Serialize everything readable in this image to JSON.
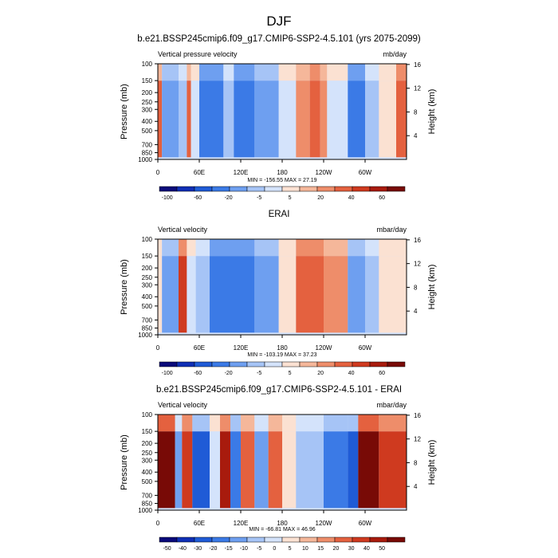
{
  "figure": {
    "main_title": "DJF"
  },
  "colors": {
    "diverging": [
      "#0a0a7a",
      "#0f2fb5",
      "#1f5bd6",
      "#3b7ae6",
      "#6e9ff0",
      "#a6c4f6",
      "#d4e3fb",
      "#fbe1d2",
      "#f5b79a",
      "#ee8d6a",
      "#e4613f",
      "#cf3a1f",
      "#a81b0d",
      "#780a06"
    ]
  },
  "chart_data": [
    {
      "type": "heatmap",
      "title": "b.e21.BSSP245cmip6.f09_g17.CMIP6-SSP2-4.5.101 (yrs 2075-2099)",
      "left_label": "Vertical pressure velocity",
      "right_label": "mb/day",
      "ylabel": "Pressure (mb)",
      "ylabel_right": "Height (km)",
      "yticks": [
        "100",
        "150",
        "200",
        "250",
        "300",
        "400",
        "500",
        "700",
        "850",
        "1000"
      ],
      "ytick_values": [
        100,
        150,
        200,
        250,
        300,
        400,
        500,
        700,
        850,
        1000
      ],
      "yticks_right": [
        "16",
        "12",
        "8",
        "4"
      ],
      "yticks_right_values": [
        16,
        12,
        8,
        4
      ],
      "xticks": [
        "0",
        "60E",
        "120E",
        "180",
        "120W",
        "60W"
      ],
      "xtick_values": [
        0,
        60,
        120,
        180,
        240,
        300
      ],
      "xlim": [
        0,
        360
      ],
      "ylim": [
        1000,
        100
      ],
      "y_scale": "log",
      "stats": "MIN = -156.55  MAX =  27.19",
      "colorbar_labels": [
        "-100",
        "-60",
        "-20",
        "-5",
        "5",
        "20",
        "40",
        "60"
      ],
      "colorbar_levels": [
        -120,
        -100,
        -80,
        -60,
        -40,
        -20,
        -10,
        -5,
        0,
        5,
        10,
        20,
        30,
        40,
        50,
        60,
        70
      ],
      "colorbar_label_positions": [
        1,
        3,
        5,
        7,
        9,
        11,
        13,
        15
      ],
      "columns": [
        {
          "lon": [
            0,
            6
          ],
          "value": 10
        },
        {
          "lon": [
            6,
            30
          ],
          "value": -40
        },
        {
          "lon": [
            30,
            42
          ],
          "value": -15
        },
        {
          "lon": [
            42,
            48
          ],
          "value": 10
        },
        {
          "lon": [
            48,
            60
          ],
          "value": -10
        },
        {
          "lon": [
            60,
            95
          ],
          "value": -60
        },
        {
          "lon": [
            95,
            110
          ],
          "value": -20
        },
        {
          "lon": [
            110,
            140
          ],
          "value": -60
        },
        {
          "lon": [
            140,
            175
          ],
          "value": -40
        },
        {
          "lon": [
            175,
            200
          ],
          "value": -10
        },
        {
          "lon": [
            200,
            220
          ],
          "value": 5
        },
        {
          "lon": [
            220,
            235
          ],
          "value": 15
        },
        {
          "lon": [
            235,
            245
          ],
          "value": 5
        },
        {
          "lon": [
            245,
            275
          ],
          "value": -10
        },
        {
          "lon": [
            275,
            300
          ],
          "value": -60
        },
        {
          "lon": [
            300,
            320
          ],
          "value": -20
        },
        {
          "lon": [
            320,
            345
          ],
          "value": -5
        },
        {
          "lon": [
            345,
            360
          ],
          "value": 15
        }
      ]
    },
    {
      "type": "heatmap",
      "title": "ERAI",
      "left_label": "Vertical velocity",
      "right_label": "mbar/day",
      "ylabel": "Pressure (mb)",
      "ylabel_right": "Height (km)",
      "yticks": [
        "100",
        "150",
        "200",
        "250",
        "300",
        "400",
        "500",
        "700",
        "850",
        "1000"
      ],
      "ytick_values": [
        100,
        150,
        200,
        250,
        300,
        400,
        500,
        700,
        850,
        1000
      ],
      "yticks_right": [
        "16",
        "12",
        "8",
        "4"
      ],
      "yticks_right_values": [
        16,
        12,
        8,
        4
      ],
      "xticks": [
        "0",
        "60E",
        "120E",
        "180",
        "120W",
        "60W"
      ],
      "xtick_values": [
        0,
        60,
        120,
        180,
        240,
        300
      ],
      "xlim": [
        0,
        360
      ],
      "ylim": [
        1000,
        100
      ],
      "y_scale": "log",
      "stats": "MIN = -103.19  MAX =  37.23",
      "colorbar_labels": [
        "-100",
        "-60",
        "-20",
        "-5",
        "5",
        "20",
        "40",
        "60"
      ],
      "colorbar_levels": [
        -120,
        -100,
        -80,
        -60,
        -40,
        -20,
        -10,
        -5,
        0,
        5,
        10,
        20,
        30,
        40,
        50,
        60,
        70
      ],
      "colorbar_label_positions": [
        1,
        3,
        5,
        7,
        9,
        11,
        13,
        15
      ],
      "columns": [
        {
          "lon": [
            0,
            6
          ],
          "value": -5
        },
        {
          "lon": [
            6,
            30
          ],
          "value": -40
        },
        {
          "lon": [
            30,
            42
          ],
          "value": 20
        },
        {
          "lon": [
            42,
            55
          ],
          "value": -10
        },
        {
          "lon": [
            55,
            75
          ],
          "value": -20
        },
        {
          "lon": [
            75,
            140
          ],
          "value": -60
        },
        {
          "lon": [
            140,
            175
          ],
          "value": -40
        },
        {
          "lon": [
            175,
            200
          ],
          "value": -5
        },
        {
          "lon": [
            200,
            240
          ],
          "value": 15
        },
        {
          "lon": [
            240,
            275
          ],
          "value": 5
        },
        {
          "lon": [
            275,
            300
          ],
          "value": -40
        },
        {
          "lon": [
            300,
            320
          ],
          "value": -20
        },
        {
          "lon": [
            320,
            360
          ],
          "value": -5
        }
      ]
    },
    {
      "type": "heatmap",
      "title": "b.e21.BSSP245cmip6.f09_g17.CMIP6-SSP2-4.5.101 - ERAI",
      "left_label": "Vertical velocity",
      "right_label": "mbar/day",
      "ylabel": "Pressure (mb)",
      "ylabel_right": "Height (km)",
      "yticks": [
        "100",
        "150",
        "200",
        "250",
        "300",
        "400",
        "500",
        "700",
        "850",
        "1000"
      ],
      "ytick_values": [
        100,
        150,
        200,
        250,
        300,
        400,
        500,
        700,
        850,
        1000
      ],
      "yticks_right": [
        "16",
        "12",
        "8",
        "4"
      ],
      "yticks_right_values": [
        16,
        12,
        8,
        4
      ],
      "xticks": [
        "0",
        "60E",
        "120E",
        "180",
        "120W",
        "60W"
      ],
      "xtick_values": [
        0,
        60,
        120,
        180,
        240,
        300
      ],
      "xlim": [
        0,
        360
      ],
      "ylim": [
        1000,
        100
      ],
      "y_scale": "log",
      "stats": "MIN = -66.81  MAX =  46.96",
      "colorbar_labels": [
        "-50",
        "-40",
        "-30",
        "-20",
        "-15",
        "-10",
        "-5",
        "0",
        "5",
        "10",
        "15",
        "20",
        "30",
        "40",
        "50"
      ],
      "colorbar_levels": [
        -60,
        -50,
        -40,
        -30,
        -20,
        -15,
        -10,
        -5,
        0,
        5,
        10,
        15,
        20,
        30,
        40,
        50,
        60
      ],
      "colorbar_label_positions": [
        1,
        2,
        3,
        4,
        5,
        6,
        7,
        8,
        9,
        10,
        11,
        12,
        13,
        14,
        15
      ],
      "columns": [
        {
          "lon": [
            0,
            25
          ],
          "value": 30
        },
        {
          "lon": [
            25,
            35
          ],
          "value": -20
        },
        {
          "lon": [
            35,
            50
          ],
          "value": 15
        },
        {
          "lon": [
            50,
            75
          ],
          "value": -40
        },
        {
          "lon": [
            75,
            90
          ],
          "value": -10
        },
        {
          "lon": [
            90,
            105
          ],
          "value": 25
        },
        {
          "lon": [
            105,
            120
          ],
          "value": -30
        },
        {
          "lon": [
            120,
            140
          ],
          "value": 10
        },
        {
          "lon": [
            140,
            160
          ],
          "value": -20
        },
        {
          "lon": [
            160,
            180
          ],
          "value": 10
        },
        {
          "lon": [
            180,
            200
          ],
          "value": -5
        },
        {
          "lon": [
            200,
            240
          ],
          "value": -15
        },
        {
          "lon": [
            240,
            275
          ],
          "value": -30
        },
        {
          "lon": [
            275,
            290
          ],
          "value": -40
        },
        {
          "lon": [
            290,
            320
          ],
          "value": 30
        },
        {
          "lon": [
            320,
            360
          ],
          "value": 15
        }
      ]
    }
  ]
}
